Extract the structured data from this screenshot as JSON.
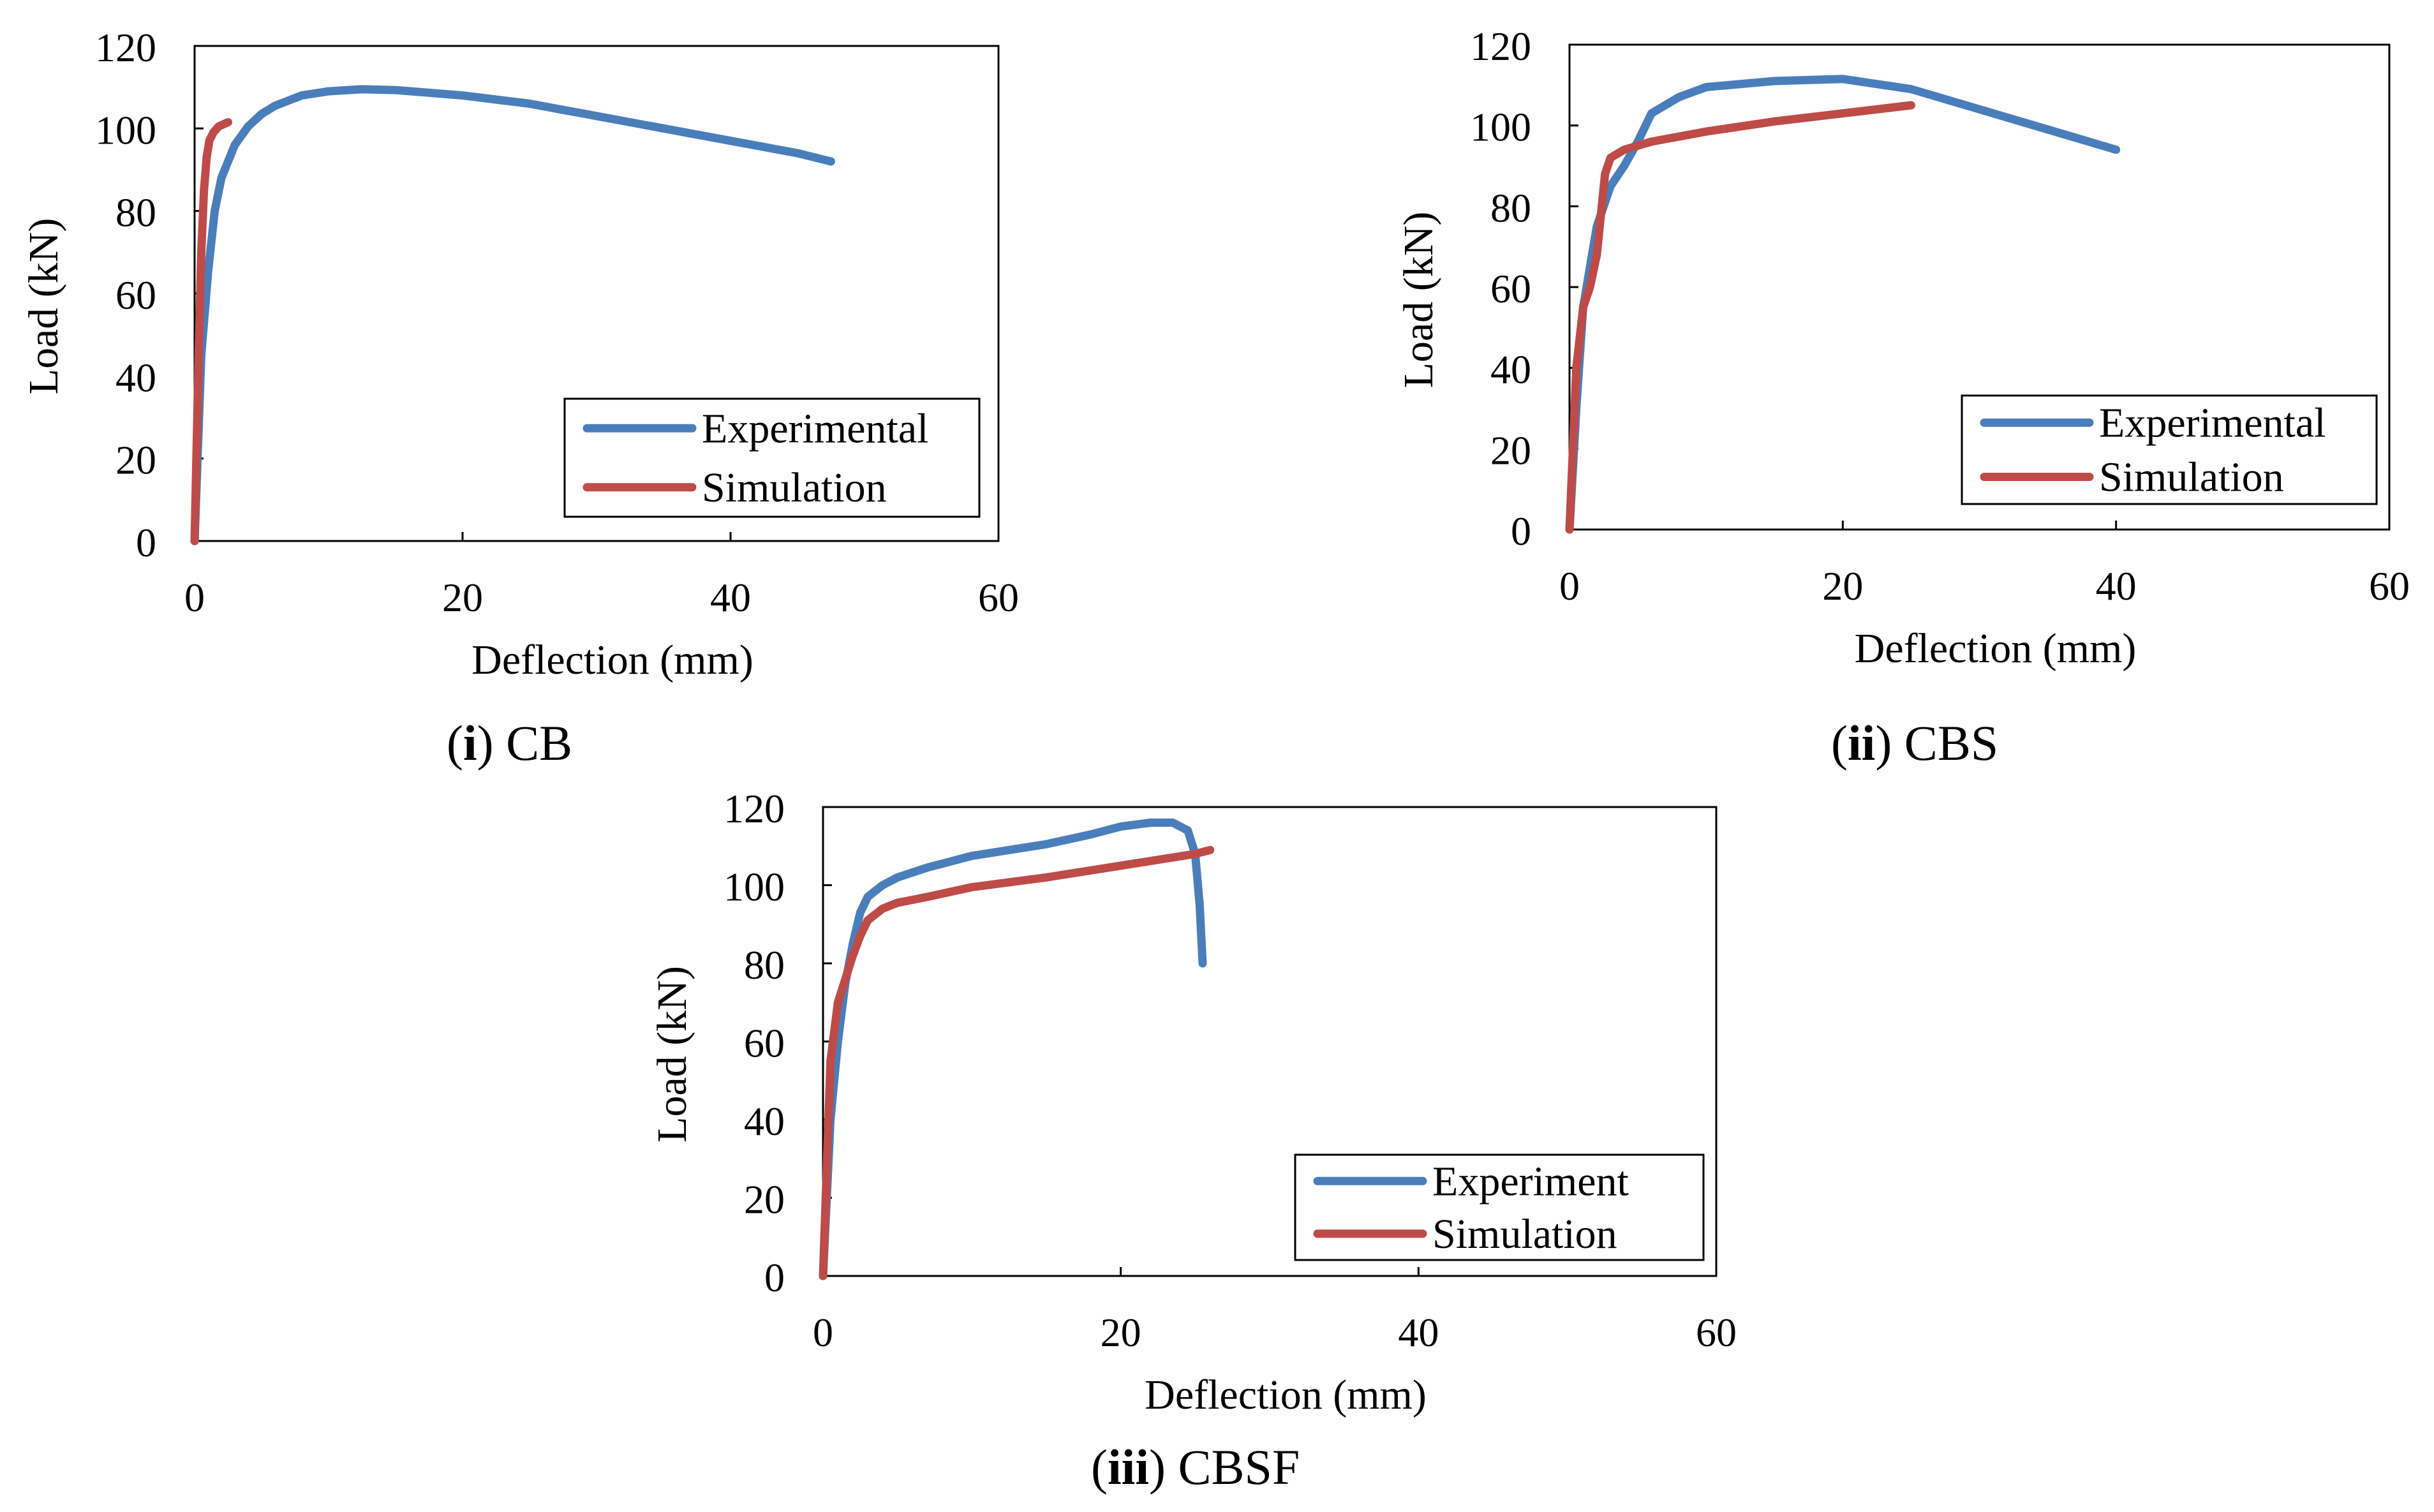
{
  "colors": {
    "experimental": "#4a7ebb",
    "simulation": "#be4b48",
    "axis": "#000000"
  },
  "panels": [
    {
      "caption_prefix": "(",
      "caption_num": "i",
      "caption_suffix": ") CB",
      "chart_data": {
        "type": "line",
        "xlabel": "Deflection (mm)",
        "ylabel": "Load (kN)",
        "xlim": [
          0,
          60
        ],
        "ylim": [
          0,
          120
        ],
        "xticks": [
          0,
          20,
          40,
          60
        ],
        "yticks": [
          0,
          20,
          40,
          60,
          80,
          100,
          120
        ],
        "legend_position": "bottom-right",
        "series": [
          {
            "name": "Experimental",
            "color_key": "experimental",
            "x": [
              0,
              0.5,
              1,
              1.5,
              2,
              3,
              4,
              5,
              6,
              8,
              10,
              12.5,
              15,
              20,
              25,
              30,
              35,
              40,
              45,
              47.5
            ],
            "y": [
              0,
              45,
              65,
              80,
              88,
              96,
              100.5,
              103.5,
              105.5,
              108,
              109,
              109.5,
              109.3,
              108,
              106,
              103,
              100,
              97,
              94,
              92
            ]
          },
          {
            "name": "Simulation",
            "color_key": "simulation",
            "x": [
              0,
              0.3,
              0.5,
              0.7,
              0.9,
              1.1,
              1.4,
              1.8,
              2.5
            ],
            "y": [
              0,
              45,
              70,
              85,
              93,
              97,
              99,
              100.5,
              101.5
            ]
          }
        ]
      }
    },
    {
      "caption_prefix": "(",
      "caption_num": "ii",
      "caption_suffix": ") CBS",
      "chart_data": {
        "type": "line",
        "xlabel": "Deflection (mm)",
        "ylabel": "Load (kN)",
        "xlim": [
          0,
          60
        ],
        "ylim": [
          0,
          120
        ],
        "xticks": [
          0,
          20,
          40,
          60
        ],
        "yticks": [
          0,
          20,
          40,
          60,
          80,
          100,
          120
        ],
        "legend_position": "bottom-right",
        "series": [
          {
            "name": "Experimental",
            "color_key": "experimental",
            "x": [
              0,
              0.5,
              1,
              2,
              3,
              4,
              5,
              6,
              8,
              10,
              15,
              20,
              25,
              30,
              35,
              40
            ],
            "y": [
              0,
              30,
              55,
              75,
              85,
              90,
              96,
              103,
              107,
              109.5,
              111,
              111.5,
              109,
              104,
              99,
              94
            ]
          },
          {
            "name": "Simulation",
            "color_key": "simulation",
            "x": [
              0,
              0.5,
              1,
              1.5,
              2,
              2.3,
              2.6,
              3,
              4,
              6,
              10,
              15,
              20,
              25
            ],
            "y": [
              0,
              40,
              55,
              60,
              68,
              78,
              88,
              92,
              94,
              96,
              98.5,
              101,
              103,
              105
            ]
          }
        ]
      }
    },
    {
      "caption_prefix": "(",
      "caption_num": "iii",
      "caption_suffix": ") CBSF",
      "chart_data": {
        "type": "line",
        "xlabel": "Deflection (mm)",
        "ylabel": "Load (kN)",
        "xlim": [
          0,
          60
        ],
        "ylim": [
          0,
          120
        ],
        "xticks": [
          0,
          20,
          40,
          60
        ],
        "yticks": [
          0,
          20,
          40,
          60,
          80,
          100,
          120
        ],
        "legend_position": "bottom-right",
        "series": [
          {
            "name": "Experiment",
            "color_key": "experimental",
            "x": [
              0,
              0.5,
              1,
              1.5,
              2,
              2.5,
              3,
              4,
              5,
              7,
              10,
              15,
              18,
              20,
              22,
              23.5,
              24.5,
              25,
              25.3,
              25.5
            ],
            "y": [
              0,
              40,
              60,
              75,
              85,
              93,
              97,
              100,
              102,
              104.5,
              107.5,
              110.5,
              113,
              115,
              116,
              116,
              114,
              108,
              95,
              80
            ]
          },
          {
            "name": "Simulation",
            "color_key": "simulation",
            "x": [
              0,
              0.5,
              1,
              1.5,
              2,
              2.5,
              3,
              4,
              5,
              7,
              10,
              15,
              20,
              25,
              26
            ],
            "y": [
              0,
              55,
              70,
              76,
              82,
              87,
              91,
              94,
              95.5,
              97,
              99.5,
              102,
              105,
              108,
              109
            ]
          }
        ]
      }
    }
  ]
}
